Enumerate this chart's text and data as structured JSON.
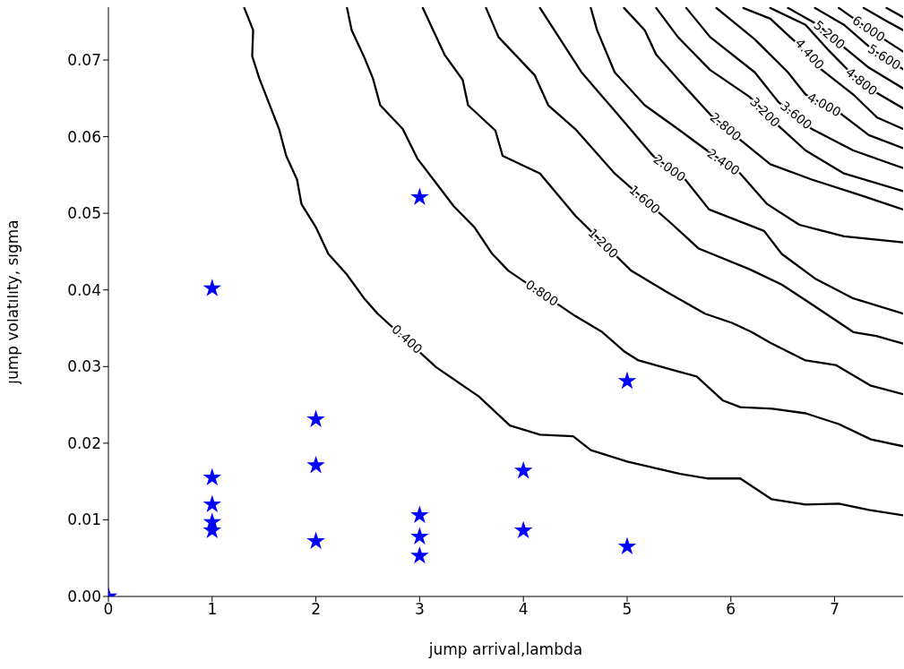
{
  "chart_data": {
    "type": "line",
    "xlabel": "jump arrival,lambda",
    "ylabel": "jump volatility, sigma",
    "xlim": [
      0,
      7.66
    ],
    "ylim": [
      0,
      0.0769
    ],
    "xticks": [
      0,
      1,
      2,
      3,
      4,
      5,
      6,
      7
    ],
    "yticks": [
      {
        "value": 0,
        "label": "0.00"
      },
      0.01,
      0.02,
      0.03,
      0.04,
      0.05,
      0.06,
      0.07
    ],
    "series": [
      {
        "type": "scatter",
        "marker": "star",
        "color": "#0000ff",
        "x": [
          0,
          1,
          1,
          1,
          1,
          1,
          2,
          2,
          2,
          3,
          3,
          3,
          3,
          4,
          4,
          5,
          5
        ],
        "values": [
          0,
          0.0402,
          0.0155,
          0.012,
          0.0097,
          0.0086,
          0.0231,
          0.0171,
          0.0072,
          0.0521,
          0.0106,
          0.0078,
          0.0053,
          0.0164,
          0.0086,
          0.0281,
          0.0065
        ]
      },
      {
        "color": "#000000",
        "x": [
          1.31,
          1.395,
          1.386,
          1.455,
          1.645,
          1.714,
          1.818,
          1.861,
          1.999,
          2.12,
          2.293,
          2.465,
          2.595,
          3.16,
          3.57,
          3.87,
          4.16,
          4.48,
          4.65,
          5.0,
          5.51,
          5.77,
          6.09,
          6.39,
          6.72,
          7.04,
          7.33,
          7.66
        ],
        "values": [
          0.0768,
          0.0739,
          0.0705,
          0.0676,
          0.061,
          0.0575,
          0.0544,
          0.0512,
          0.0482,
          0.0447,
          0.0421,
          0.0389,
          0.0369,
          0.0299,
          0.0261,
          0.0223,
          0.0211,
          0.0209,
          0.0191,
          0.0176,
          0.016,
          0.0154,
          0.0154,
          0.0127,
          0.012,
          0.0121,
          0.0113,
          0.0106
        ]
      },
      {
        "color": "#000000",
        "x": [
          2.3,
          2.345,
          2.465,
          2.55,
          2.62,
          2.837,
          2.98,
          3.156,
          3.33,
          3.527,
          3.7,
          3.856,
          4.5,
          4.76,
          4.97,
          5.11,
          5.51,
          5.67,
          5.92,
          6.09,
          6.4,
          6.72,
          7.04,
          7.35,
          7.66
        ],
        "values": [
          0.0768,
          0.0739,
          0.0704,
          0.0676,
          0.0641,
          0.061,
          0.0571,
          0.054,
          0.0509,
          0.0482,
          0.0447,
          0.0425,
          0.0366,
          0.0345,
          0.032,
          0.0308,
          0.0293,
          0.0287,
          0.0256,
          0.0247,
          0.0245,
          0.0239,
          0.0225,
          0.0205,
          0.0196
        ]
      },
      {
        "color": "#000000",
        "x": [
          3.03,
          3.24,
          3.415,
          3.467,
          3.73,
          3.8,
          4.16,
          4.5,
          5.04,
          5.4,
          5.75,
          6.01,
          6.2,
          6.38,
          6.72,
          7.01,
          7.35,
          7.66
        ],
        "values": [
          0.0768,
          0.0707,
          0.0674,
          0.0641,
          0.0608,
          0.0575,
          0.0552,
          0.0497,
          0.0425,
          0.0396,
          0.0369,
          0.0357,
          0.0345,
          0.0331,
          0.0308,
          0.0302,
          0.0275,
          0.0264
        ]
      },
      {
        "color": "#000000",
        "x": [
          3.64,
          3.76,
          4.11,
          4.24,
          4.5,
          4.88,
          5.44,
          5.69,
          6.18,
          6.49,
          6.75,
          7.18,
          7.4,
          7.66
        ],
        "values": [
          0.0768,
          0.073,
          0.068,
          0.0641,
          0.061,
          0.0552,
          0.0485,
          0.0454,
          0.0427,
          0.0407,
          0.0384,
          0.0345,
          0.034,
          0.033
        ]
      },
      {
        "color": "#000000",
        "x": [
          4.16,
          4.56,
          4.91,
          5.25,
          5.56,
          5.79,
          6.32,
          6.49,
          6.81,
          7.18,
          7.66
        ],
        "values": [
          0.0768,
          0.0684,
          0.0629,
          0.0575,
          0.0544,
          0.0505,
          0.0477,
          0.0447,
          0.0415,
          0.0389,
          0.0369
        ]
      },
      {
        "color": "#000000",
        "x": [
          4.65,
          4.71,
          4.88,
          5.17,
          5.51,
          5.77,
          6.09,
          6.35,
          6.66,
          7.09,
          7.66
        ],
        "values": [
          0.0768,
          0.0739,
          0.0684,
          0.0641,
          0.0608,
          0.0582,
          0.0552,
          0.0512,
          0.0485,
          0.047,
          0.0462
        ]
      },
      {
        "color": "#000000",
        "x": [
          4.97,
          5.17,
          5.28,
          5.51,
          5.8,
          6.09,
          6.38,
          6.78,
          7.24,
          7.66
        ],
        "values": [
          0.0768,
          0.0739,
          0.0707,
          0.0672,
          0.0629,
          0.0596,
          0.0564,
          0.0544,
          0.0524,
          0.0505
        ]
      },
      {
        "color": "#000000",
        "x": [
          5.28,
          5.49,
          5.8,
          6.18,
          6.46,
          6.72,
          7.09,
          7.66
        ],
        "values": [
          0.0768,
          0.073,
          0.0687,
          0.0652,
          0.0614,
          0.0582,
          0.0552,
          0.0529
        ]
      },
      {
        "color": "#000000",
        "x": [
          5.57,
          5.8,
          6.23,
          6.46,
          6.78,
          7.18,
          7.66
        ],
        "values": [
          0.0768,
          0.073,
          0.0684,
          0.0645,
          0.061,
          0.0582,
          0.0559
        ]
      },
      {
        "color": "#000000",
        "x": [
          5.86,
          6.23,
          6.55,
          6.72,
          7.07,
          7.33,
          7.66
        ],
        "values": [
          0.0768,
          0.0727,
          0.0684,
          0.0655,
          0.0629,
          0.0602,
          0.0585
        ]
      },
      {
        "color": "#000000",
        "x": [
          6.12,
          6.38,
          6.66,
          6.85,
          7.18,
          7.41,
          7.66
        ],
        "values": [
          0.0768,
          0.0754,
          0.0719,
          0.069,
          0.0655,
          0.0625,
          0.061
        ]
      },
      {
        "color": "#000000",
        "x": [
          6.38,
          6.72,
          6.94,
          7.15,
          7.37,
          7.66
        ],
        "values": [
          0.0768,
          0.0746,
          0.0713,
          0.0684,
          0.066,
          0.0637
        ]
      },
      {
        "color": "#000000",
        "x": [
          6.55,
          6.84,
          7.07,
          7.33,
          7.66
        ],
        "values": [
          0.0768,
          0.0746,
          0.0719,
          0.069,
          0.0663
        ]
      },
      {
        "color": "#000000",
        "x": [
          6.81,
          7.09,
          7.37,
          7.66
        ],
        "values": [
          0.0768,
          0.0746,
          0.0713,
          0.0688
        ]
      },
      {
        "color": "#000000",
        "x": [
          7.04,
          7.29,
          7.5,
          7.66
        ],
        "values": [
          0.0768,
          0.0744,
          0.0725,
          0.0711
        ]
      },
      {
        "color": "#000000",
        "x": [
          7.28,
          7.5,
          7.66
        ],
        "values": [
          0.0768,
          0.0751,
          0.0739
        ]
      },
      {
        "color": "#000000",
        "x": [
          7.5,
          7.66
        ],
        "values": [
          0.0768,
          0.0756
        ]
      }
    ],
    "annotations": [
      {
        "text": "0.400",
        "x": 2.88,
        "y": 0.0336
      },
      {
        "text": "0.800",
        "x": 4.18,
        "y": 0.0396
      },
      {
        "text": "1.200",
        "x": 4.77,
        "y": 0.0461
      },
      {
        "text": "1.600",
        "x": 5.17,
        "y": 0.0518
      },
      {
        "text": "2.000",
        "x": 5.41,
        "y": 0.0559
      },
      {
        "text": "2.400",
        "x": 5.93,
        "y": 0.0567
      },
      {
        "text": "2.800",
        "x": 5.95,
        "y": 0.0613
      },
      {
        "text": "3.200",
        "x": 6.33,
        "y": 0.0632
      },
      {
        "text": "3.600",
        "x": 6.63,
        "y": 0.0628
      },
      {
        "text": "4.000",
        "x": 6.9,
        "y": 0.0642
      },
      {
        "text": "4.400",
        "x": 6.76,
        "y": 0.0708
      },
      {
        "text": "4.800",
        "x": 7.26,
        "y": 0.0672
      },
      {
        "text": "5.200",
        "x": 6.95,
        "y": 0.0733
      },
      {
        "text": "5.600",
        "x": 7.48,
        "y": 0.0704
      },
      {
        "text": "6.000",
        "x": 7.33,
        "y": 0.0741
      }
    ]
  }
}
